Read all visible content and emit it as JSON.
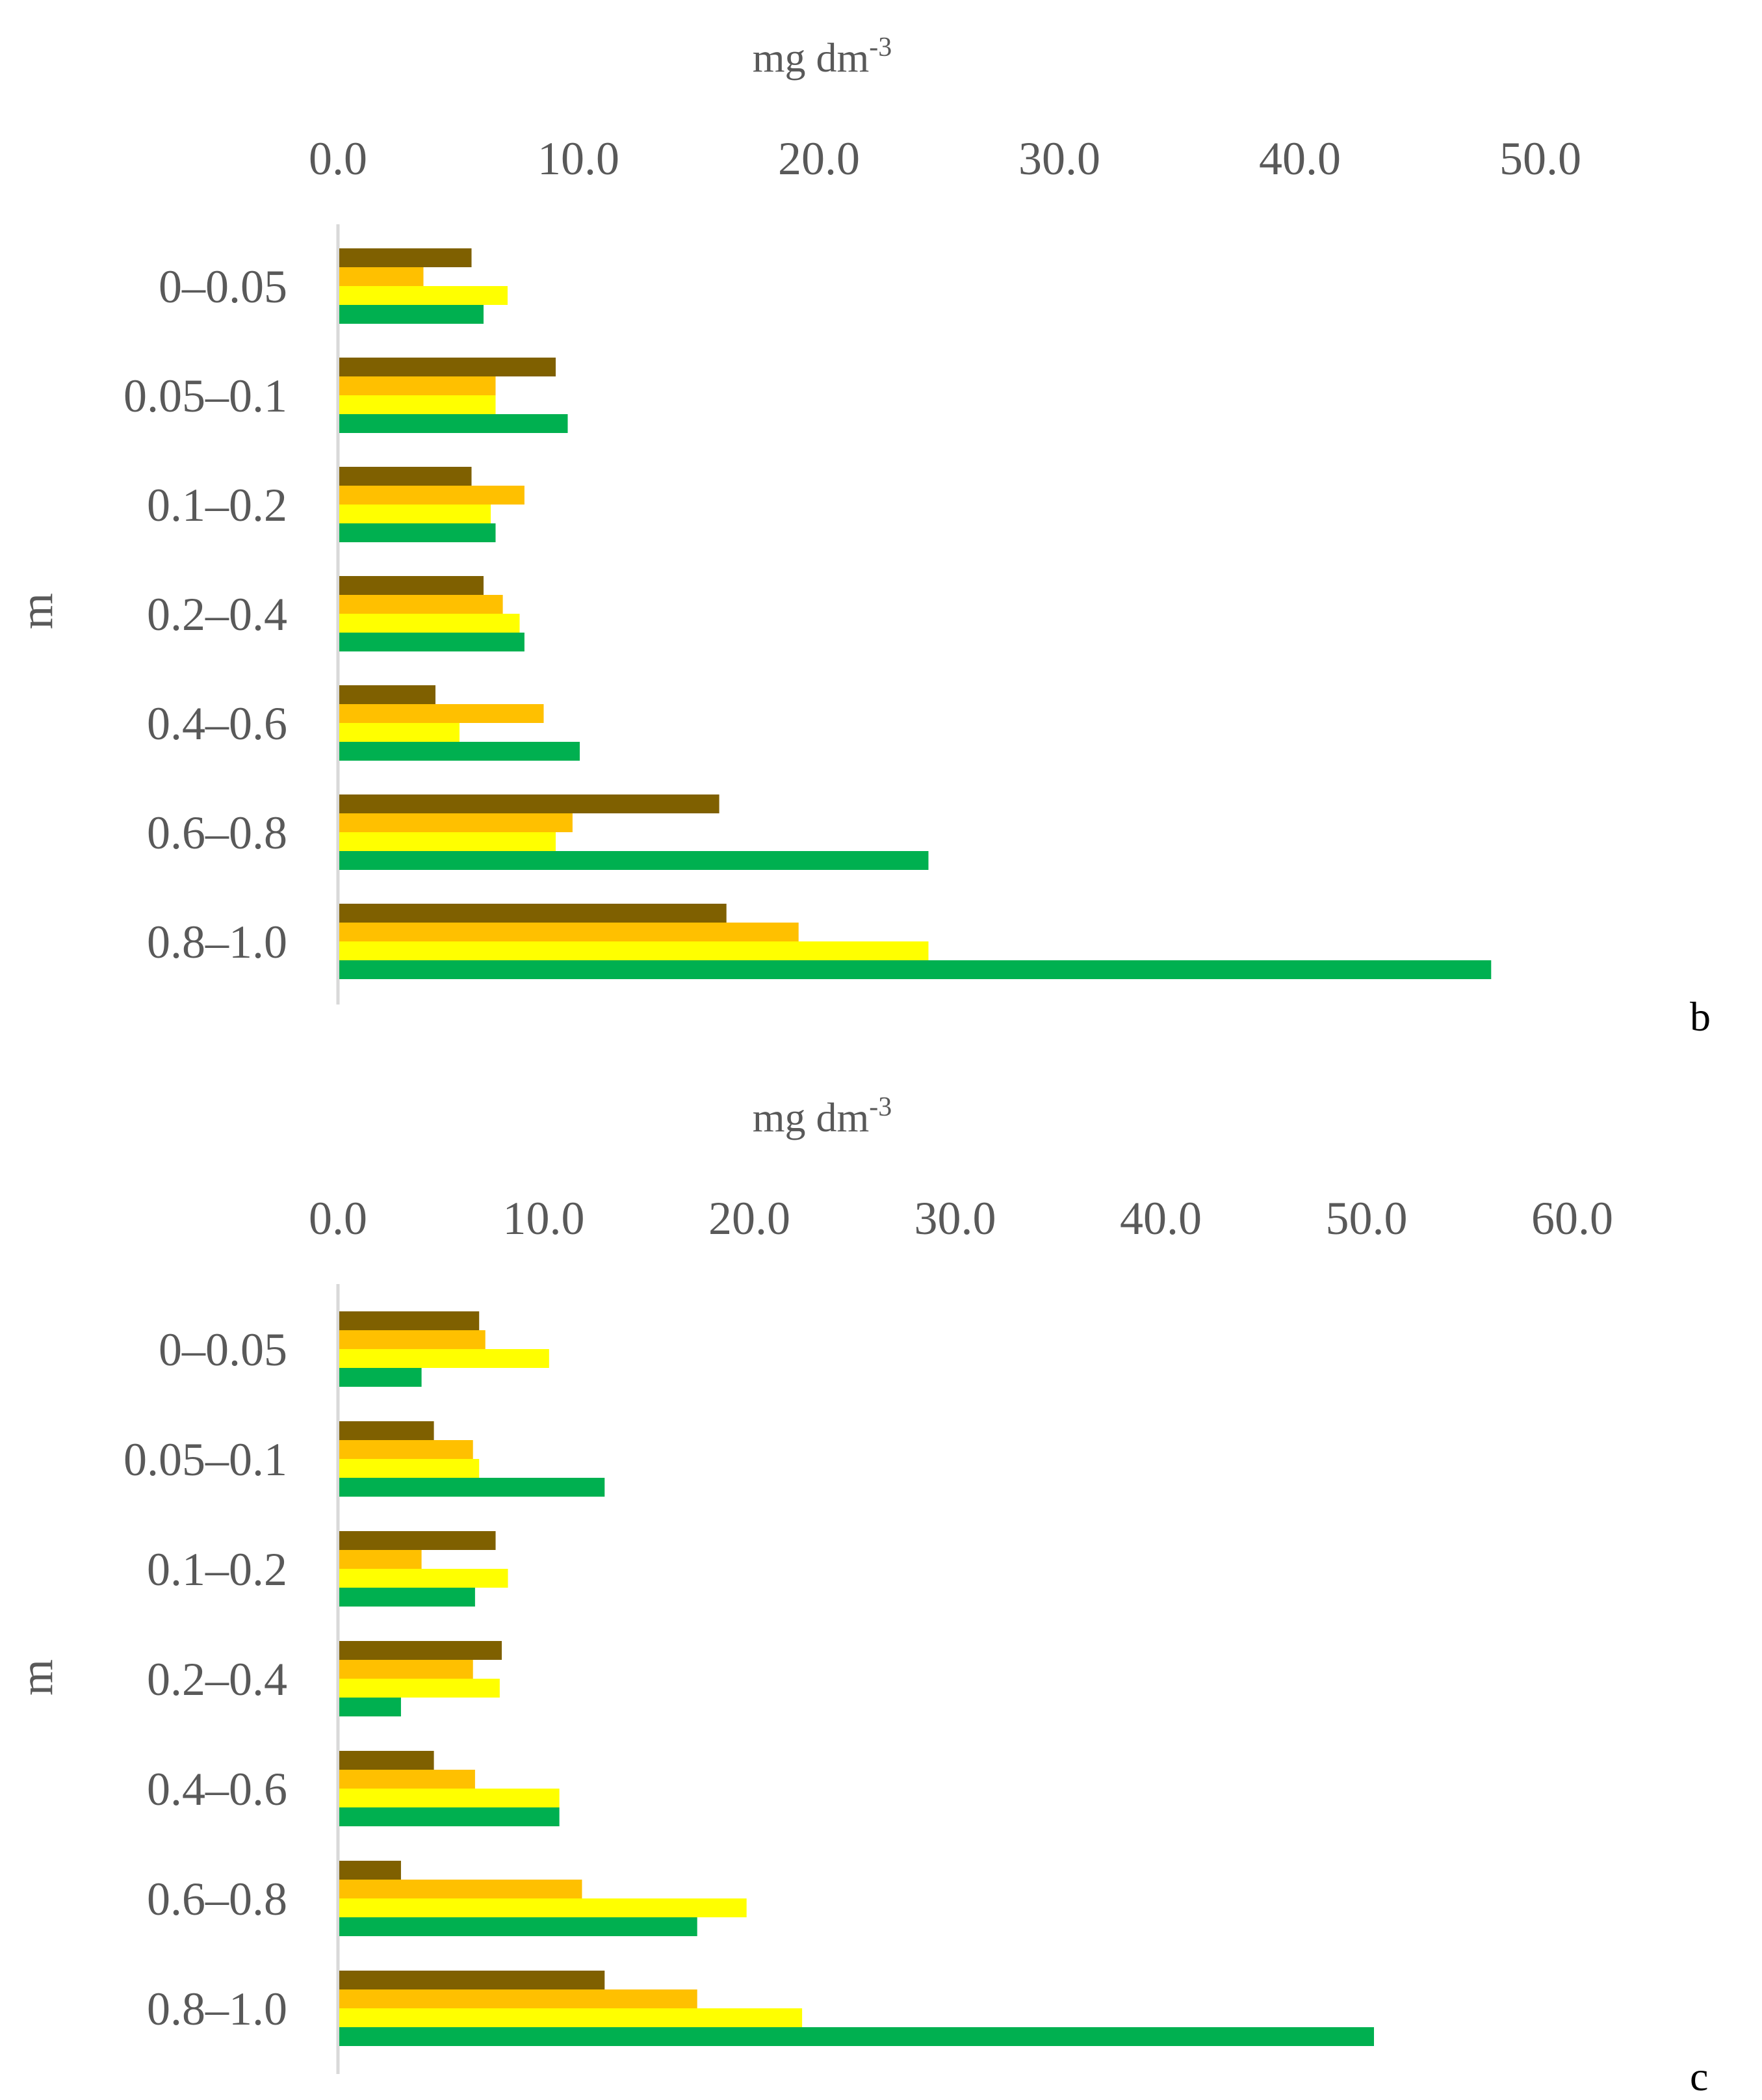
{
  "colors": {
    "series_1": "#7F6000",
    "series_2": "#FFC000",
    "series_3": "#FFFF00",
    "series_4": "#00B050",
    "axis_text": "#595959",
    "axis_line": "#D9D9D9"
  },
  "chart_data": [
    {
      "type": "bar",
      "orientation": "horizontal",
      "panel_label": "b",
      "xlabel": "mg dm-3",
      "xlabel_base": "mg dm",
      "xlabel_sup": "-3",
      "ylabel": "m",
      "xlim": [
        0,
        50
      ],
      "xticks": [
        "0.0",
        "10.0",
        "20.0",
        "30.0",
        "40.0",
        "50.0"
      ],
      "x_axis_position": "top",
      "grid": false,
      "legend": "none",
      "categories": [
        "0–0.05",
        "0.05–0.1",
        "0.1–0.2",
        "0.2–0.4",
        "0.4–0.6",
        "0.6–0.8",
        "0.8–1.0"
      ],
      "series": [
        {
          "color": "#7F6000",
          "values": [
            5.5,
            9.0,
            5.5,
            6.0,
            4.0,
            15.8,
            16.1
          ]
        },
        {
          "color": "#FFC000",
          "values": [
            3.5,
            6.5,
            7.7,
            6.8,
            8.5,
            9.7,
            19.1
          ]
        },
        {
          "color": "#FFFF00",
          "values": [
            7.0,
            6.5,
            6.3,
            7.5,
            5.0,
            9.0,
            24.5
          ]
        },
        {
          "color": "#00B050",
          "values": [
            6.0,
            9.5,
            6.5,
            7.7,
            10.0,
            24.5,
            47.9
          ]
        }
      ]
    },
    {
      "type": "bar",
      "orientation": "horizontal",
      "panel_label": "c",
      "xlabel": "mg dm-3",
      "xlabel_base": "mg dm",
      "xlabel_sup": "-3",
      "ylabel": "m",
      "xlim": [
        0,
        60
      ],
      "xticks": [
        "0.0",
        "10.0",
        "20.0",
        "30.0",
        "40.0",
        "50.0",
        "60.0"
      ],
      "x_axis_position": "top",
      "grid": false,
      "legend": "none",
      "categories": [
        "0–0.05",
        "0.05–0.1",
        "0.1–0.2",
        "0.2–0.4",
        "0.4–0.6",
        "0.6–0.8",
        "0.8–1.0"
      ],
      "series": [
        {
          "color": "#7F6000",
          "values": [
            6.8,
            4.6,
            7.6,
            7.9,
            4.6,
            3.0,
            12.9
          ]
        },
        {
          "color": "#FFC000",
          "values": [
            7.1,
            6.5,
            4.0,
            6.5,
            6.6,
            11.8,
            17.4
          ]
        },
        {
          "color": "#FFFF00",
          "values": [
            10.2,
            6.8,
            8.2,
            7.8,
            10.7,
            19.8,
            22.5
          ]
        },
        {
          "color": "#00B050",
          "values": [
            4.0,
            12.9,
            6.6,
            3.0,
            10.7,
            17.4,
            50.3
          ]
        }
      ]
    }
  ]
}
